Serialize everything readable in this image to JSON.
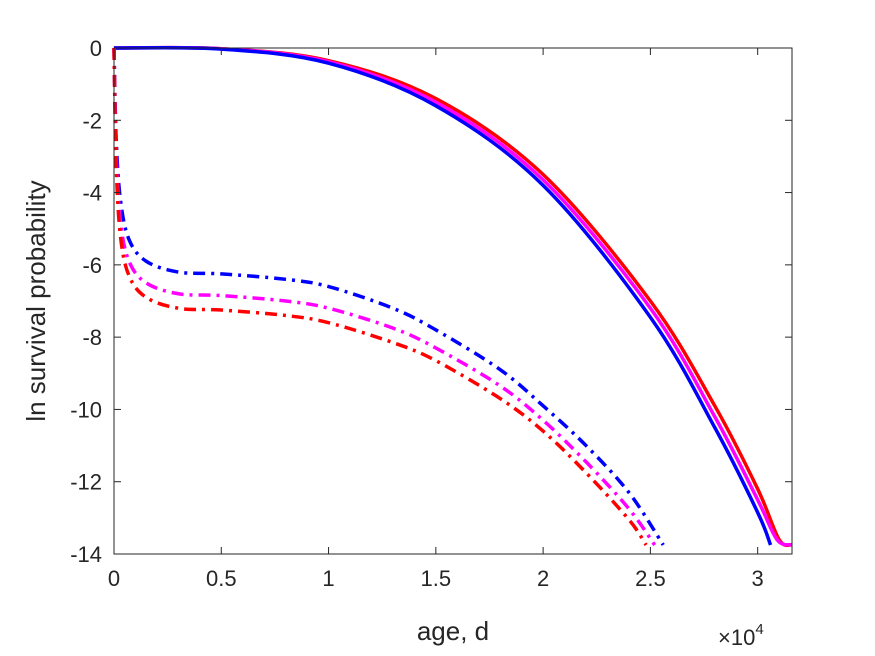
{
  "chart_data": {
    "type": "line",
    "title": "",
    "xlabel": "age, d",
    "ylabel": "ln survival probability",
    "x_exponent_label": "×10",
    "x_exponent_power": "4",
    "xlim": [
      0,
      31600
    ],
    "ylim": [
      -14,
      0
    ],
    "x_ticks": [
      0,
      5000,
      10000,
      15000,
      20000,
      25000,
      30000
    ],
    "x_tick_labels": [
      "0",
      "0.5",
      "1",
      "1.5",
      "2",
      "2.5",
      "3"
    ],
    "y_ticks": [
      0,
      -2,
      -4,
      -6,
      -8,
      -10,
      -12,
      -14
    ],
    "y_tick_labels": [
      "0",
      "-2",
      "-4",
      "-6",
      "-8",
      "-10",
      "-12",
      "-14"
    ],
    "grid": false,
    "series": [
      {
        "color": "#ff0000",
        "style": "solid",
        "points": [
          [
            0,
            0
          ],
          [
            5000,
            -0.02
          ],
          [
            10000,
            -0.35
          ],
          [
            15000,
            -1.4
          ],
          [
            20000,
            -3.5
          ],
          [
            25000,
            -7.0
          ],
          [
            28000,
            -9.9
          ],
          [
            30000,
            -12.2
          ],
          [
            31000,
            -13.6
          ],
          [
            31600,
            -13.75
          ]
        ]
      },
      {
        "color": "#ff00ff",
        "style": "solid",
        "points": [
          [
            0,
            0
          ],
          [
            5000,
            -0.02
          ],
          [
            10000,
            -0.38
          ],
          [
            15000,
            -1.5
          ],
          [
            20000,
            -3.65
          ],
          [
            25000,
            -7.2
          ],
          [
            28000,
            -10.2
          ],
          [
            30000,
            -12.5
          ],
          [
            30900,
            -13.6
          ],
          [
            31600,
            -13.75
          ]
        ]
      },
      {
        "color": "#0000ff",
        "style": "solid",
        "points": [
          [
            0,
            0
          ],
          [
            5000,
            -0.03
          ],
          [
            10000,
            -0.42
          ],
          [
            15000,
            -1.6
          ],
          [
            20000,
            -3.8
          ],
          [
            25000,
            -7.45
          ],
          [
            28000,
            -10.5
          ],
          [
            30000,
            -12.85
          ],
          [
            30600,
            -13.75
          ]
        ]
      },
      {
        "color": "#0000ff",
        "style": "dashdot",
        "points": [
          [
            0,
            0
          ],
          [
            100,
            -2.5
          ],
          [
            300,
            -4.2
          ],
          [
            700,
            -5.3
          ],
          [
            1500,
            -5.9
          ],
          [
            3000,
            -6.2
          ],
          [
            5000,
            -6.25
          ],
          [
            8000,
            -6.4
          ],
          [
            10000,
            -6.6
          ],
          [
            13000,
            -7.2
          ],
          [
            15000,
            -7.8
          ],
          [
            18000,
            -8.9
          ],
          [
            20000,
            -9.9
          ],
          [
            22000,
            -11.0
          ],
          [
            24000,
            -12.3
          ],
          [
            25600,
            -13.75
          ]
        ]
      },
      {
        "color": "#ff00ff",
        "style": "dashdot",
        "points": [
          [
            0,
            0
          ],
          [
            100,
            -2.9
          ],
          [
            300,
            -4.8
          ],
          [
            700,
            -5.9
          ],
          [
            1500,
            -6.5
          ],
          [
            3000,
            -6.8
          ],
          [
            5000,
            -6.85
          ],
          [
            8000,
            -7.0
          ],
          [
            10000,
            -7.2
          ],
          [
            13000,
            -7.75
          ],
          [
            15000,
            -8.3
          ],
          [
            18000,
            -9.35
          ],
          [
            20000,
            -10.3
          ],
          [
            22000,
            -11.45
          ],
          [
            24000,
            -12.75
          ],
          [
            25200,
            -13.75
          ]
        ]
      },
      {
        "color": "#ff0000",
        "style": "dashdot",
        "points": [
          [
            0,
            0
          ],
          [
            100,
            -3.2
          ],
          [
            300,
            -5.2
          ],
          [
            700,
            -6.3
          ],
          [
            1500,
            -6.9
          ],
          [
            3000,
            -7.2
          ],
          [
            5000,
            -7.25
          ],
          [
            8000,
            -7.4
          ],
          [
            10000,
            -7.6
          ],
          [
            13000,
            -8.15
          ],
          [
            15000,
            -8.65
          ],
          [
            18000,
            -9.7
          ],
          [
            20000,
            -10.6
          ],
          [
            22000,
            -11.75
          ],
          [
            24000,
            -13.05
          ],
          [
            24800,
            -13.75
          ]
        ]
      }
    ]
  }
}
